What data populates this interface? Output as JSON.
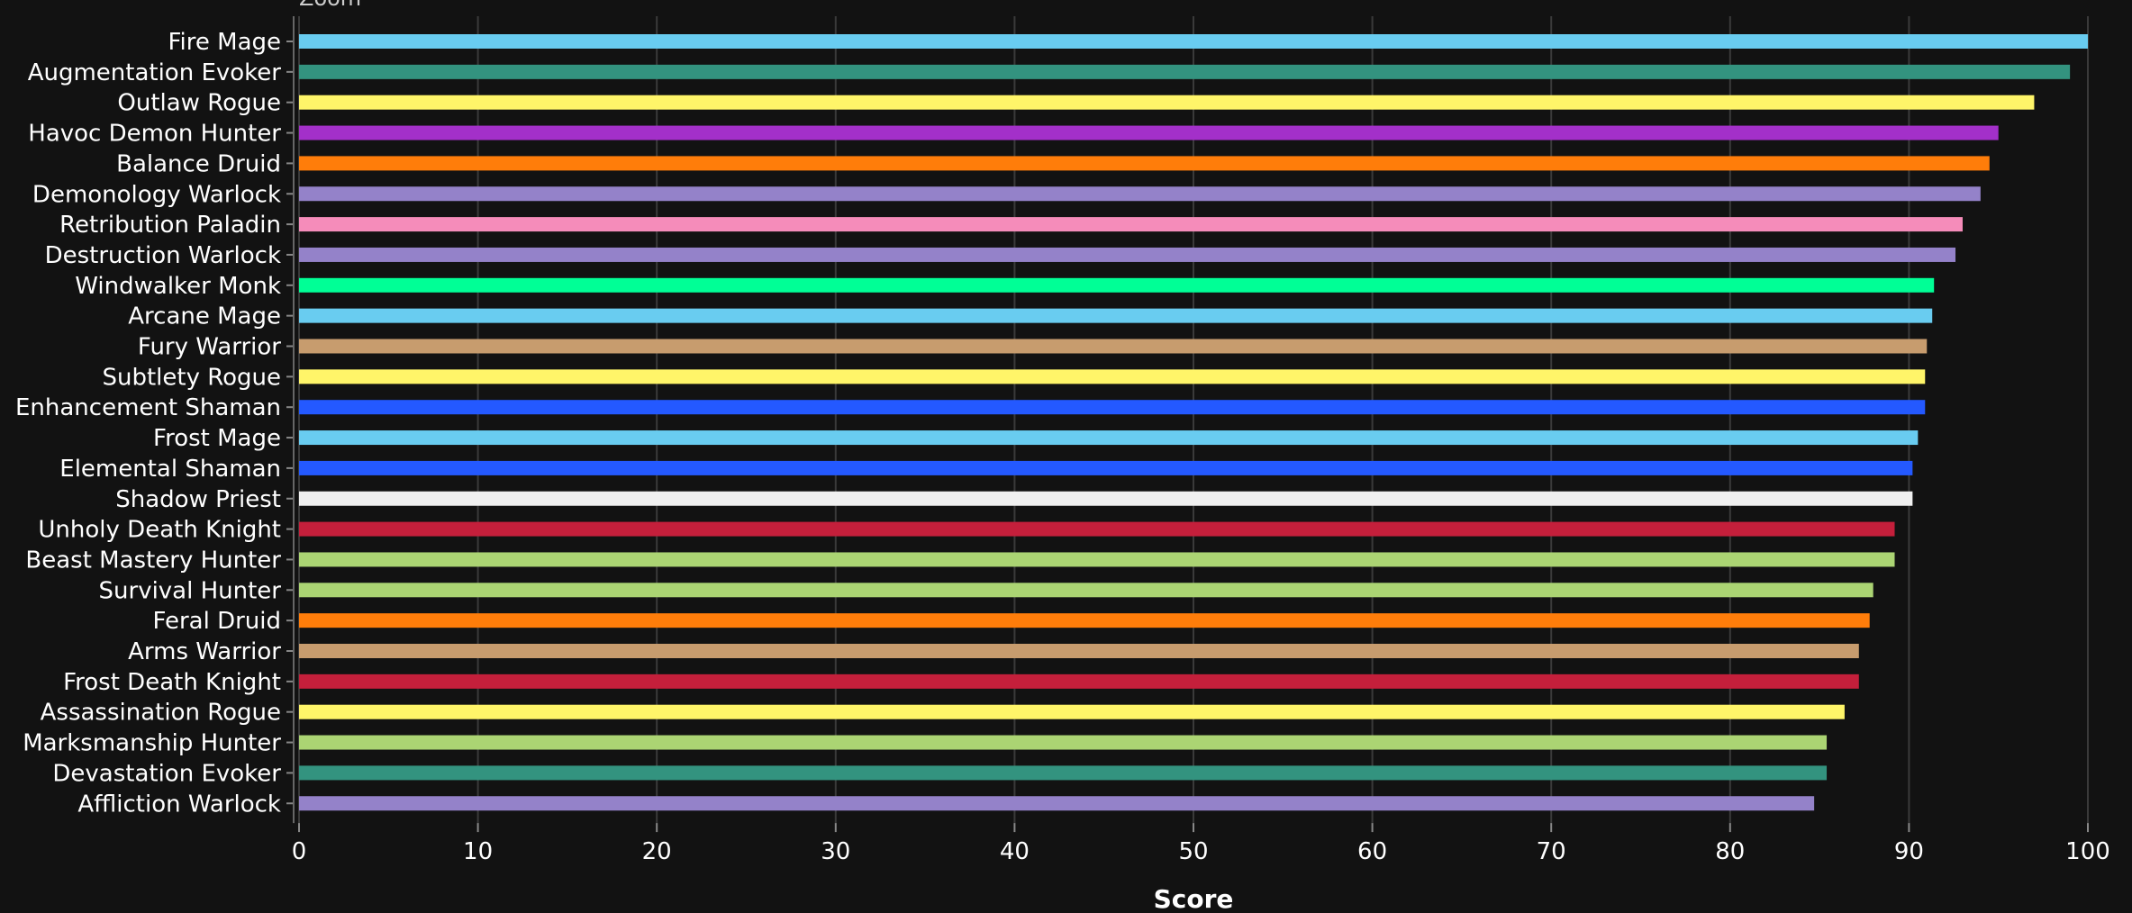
{
  "zoom_label": "Zoom",
  "chart_data": {
    "type": "bar",
    "orientation": "horizontal",
    "title": "",
    "xlabel": "Score",
    "ylabel": "",
    "xlim": [
      0,
      100
    ],
    "xticks": [
      0,
      10,
      20,
      30,
      40,
      50,
      60,
      70,
      80,
      90,
      100
    ],
    "grid": true,
    "categories": [
      "Fire Mage",
      "Augmentation Evoker",
      "Outlaw Rogue",
      "Havoc Demon Hunter",
      "Balance Druid",
      "Demonology Warlock",
      "Retribution Paladin",
      "Destruction Warlock",
      "Windwalker Monk",
      "Arcane Mage",
      "Fury Warrior",
      "Subtlety Rogue",
      "Enhancement Shaman",
      "Frost Mage",
      "Elemental Shaman",
      "Shadow Priest",
      "Unholy Death Knight",
      "Beast Mastery Hunter",
      "Survival Hunter",
      "Feral Druid",
      "Arms Warrior",
      "Frost Death Knight",
      "Assassination Rogue",
      "Marksmanship Hunter",
      "Devastation Evoker",
      "Affliction Warlock"
    ],
    "values": [
      100,
      99,
      97,
      95,
      94.5,
      94,
      93,
      92.6,
      91.4,
      91.3,
      91,
      90.9,
      90.9,
      90.5,
      90.2,
      90.2,
      89.2,
      89.2,
      88,
      87.8,
      87.2,
      87.2,
      86.4,
      85.4,
      85.4,
      84.7
    ],
    "colors": [
      "#69ccf0",
      "#33937f",
      "#fff569",
      "#a330c9",
      "#ff7d0a",
      "#9482c9",
      "#f58cba",
      "#9482c9",
      "#00ff96",
      "#69ccf0",
      "#c79c6e",
      "#fff569",
      "#2459ff",
      "#69ccf0",
      "#2459ff",
      "#f0f0f0",
      "#c41f3b",
      "#abd473",
      "#abd473",
      "#ff7d0a",
      "#c79c6e",
      "#c41f3b",
      "#fff569",
      "#abd473",
      "#33937f",
      "#9482c9"
    ]
  }
}
